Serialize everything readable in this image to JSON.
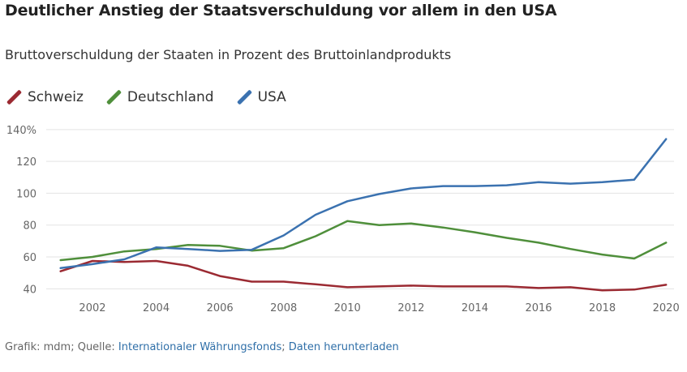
{
  "title": "Deutlicher Anstieg der Staatsverschuldung vor allem in den USA",
  "subtitle": "Bruttoverschuldung der Staaten in Prozent des Bruttoinlandprodukts",
  "footer": {
    "prefix": "Grafik: mdm; Quelle: ",
    "source_link": "Internationaler Währungsfonds",
    "separator": "; ",
    "download_link": "Daten herunterladen"
  },
  "colors": {
    "schweiz": "#9b2a32",
    "deutschland": "#4f8f3b",
    "usa": "#3b72b0",
    "grid": "#e3e3e3",
    "axis_text": "#666666"
  },
  "chart_data": {
    "type": "line",
    "title": "Deutlicher Anstieg der Staatsverschuldung vor allem in den USA",
    "subtitle": "Bruttoverschuldung der Staaten in Prozent des Bruttoinlandprodukts",
    "xlabel": "",
    "ylabel": "",
    "x": [
      2001,
      2002,
      2003,
      2004,
      2005,
      2006,
      2007,
      2008,
      2009,
      2010,
      2011,
      2012,
      2013,
      2014,
      2015,
      2016,
      2017,
      2018,
      2019,
      2020
    ],
    "x_ticks": [
      2002,
      2004,
      2006,
      2008,
      2010,
      2012,
      2014,
      2016,
      2018,
      2020
    ],
    "x_tick_labels": [
      "2002",
      "2004",
      "2006",
      "2008",
      "2010",
      "2012",
      "2014",
      "2016",
      "2018",
      "2020"
    ],
    "xlim": [
      2000.55,
      2020.25
    ],
    "y_ticks": [
      40,
      60,
      80,
      100,
      120,
      140
    ],
    "y_tick_labels": [
      "40",
      "60",
      "80",
      "100",
      "120",
      "140%"
    ],
    "ylim": [
      30,
      145
    ],
    "grid": true,
    "legend_position": "top-left",
    "series": [
      {
        "name": "Schweiz",
        "key": "schweiz",
        "values": [
          51,
          57.5,
          56.8,
          57.5,
          54.5,
          48,
          44.5,
          44.5,
          42.8,
          41,
          41.5,
          42,
          41.5,
          41.5,
          41.5,
          40.5,
          41,
          39,
          39.5,
          42.5
        ]
      },
      {
        "name": "Deutschland",
        "key": "deutschland",
        "values": [
          58,
          60,
          63.5,
          65,
          67.5,
          67,
          64,
          65.5,
          73,
          82.5,
          80,
          81,
          78.5,
          75.5,
          72,
          69,
          65,
          61.5,
          59,
          69
        ]
      },
      {
        "name": "USA",
        "key": "usa",
        "values": [
          53,
          55.5,
          58.5,
          66,
          65,
          63.8,
          64.5,
          73.5,
          86.5,
          95,
          99.5,
          103,
          104.5,
          104.5,
          105,
          107,
          106,
          107,
          108.5,
          134
        ]
      }
    ]
  }
}
